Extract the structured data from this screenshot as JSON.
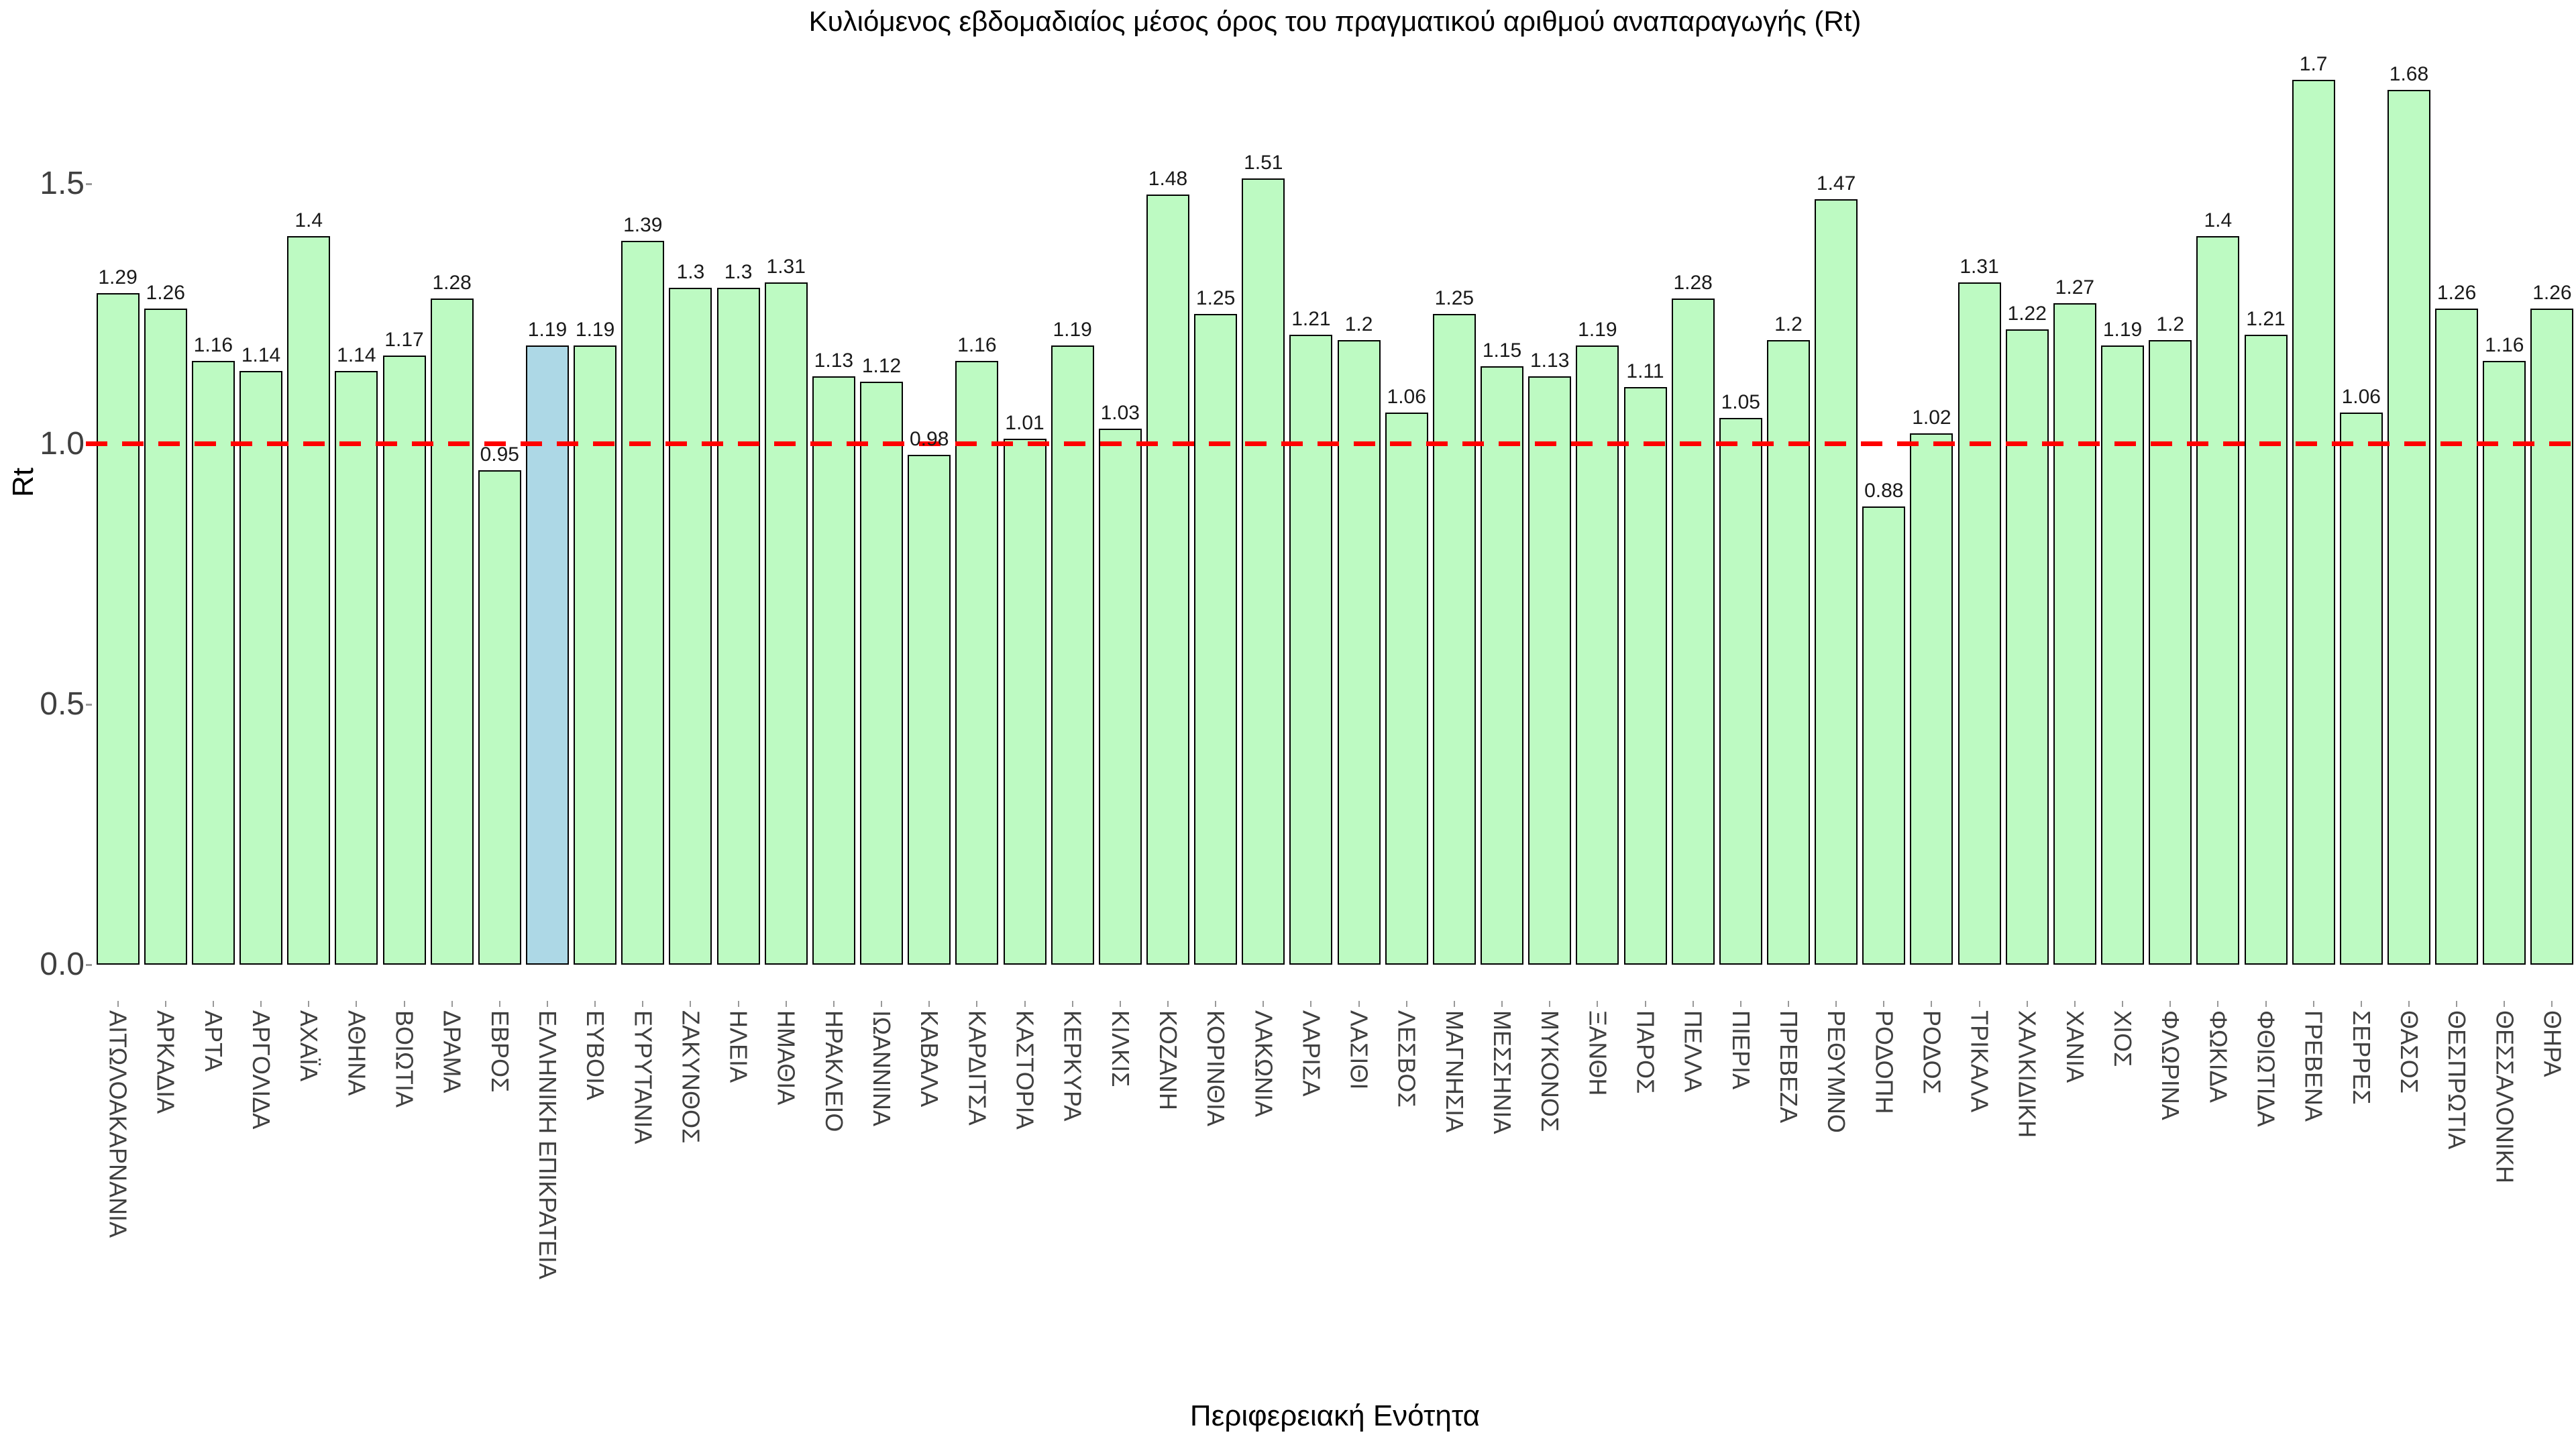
{
  "chart_data": {
    "type": "bar",
    "title": "Κυλιόμενος εβδομαδιαίος μέσος όρος του πραγματικού αριθμού αναπαραγωγής (Rt)",
    "xlabel": "Περιφερειακή Ενότητα",
    "ylabel": "Rt",
    "categories": [
      "ΑΙΤΩΛΟΑΚΑΡΝΑΝΙΑ",
      "ΑΡΚΑΔΙΑ",
      "ΑΡΤΑ",
      "ΑΡΓΟΛΙΔΑ",
      "ΑΧΑΪΑ",
      "ΑΘΗΝΑ",
      "ΒΟΙΩΤΙΑ",
      "ΔΡΑΜΑ",
      "ΕΒΡΟΣ",
      "ΕΛΛΗΝΙΚΗ ΕΠΙΚΡΑΤΕΙΑ",
      "ΕΥΒΟΙΑ",
      "ΕΥΡΥΤΑΝΙΑ",
      "ΖΑΚΥΝΘΟΣ",
      "ΗΛΕΙΑ",
      "ΗΜΑΘΙΑ",
      "ΗΡΑΚΛΕΙΟ",
      "ΙΩΑΝΝΙΝΑ",
      "ΚΑΒΑΛΑ",
      "ΚΑΡΔΙΤΣΑ",
      "ΚΑΣΤΟΡΙΑ",
      "ΚΕΡΚΥΡΑ",
      "ΚΙΛΚΙΣ",
      "ΚΟΖΑΝΗ",
      "ΚΟΡΙΝΘΙΑ",
      "ΛΑΚΩΝΙΑ",
      "ΛΑΡΙΣΑ",
      "ΛΑΣΙΘΙ",
      "ΛΕΣΒΟΣ",
      "ΜΑΓΝΗΣΙΑ",
      "ΜΕΣΣΗΝΙΑ",
      "ΜΥΚΟΝΟΣ",
      "ΞΑΝΘΗ",
      "ΠΑΡΟΣ",
      "ΠΕΛΛΑ",
      "ΠΙΕΡΙΑ",
      "ΠΡΕΒΕΖΑ",
      "ΡΕΘΥΜΝΟ",
      "ΡΟΔΟΠΗ",
      "ΡΟΔΟΣ",
      "ΤΡΙΚΑΛΑ",
      "ΧΑΛΚΙΔΙΚΗ",
      "ΧΑΝΙΑ",
      "ΧΙΟΣ",
      "ΦΛΩΡΙΝΑ",
      "ΦΩΚΙΔΑ",
      "ΦΘΙΩΤΙΔΑ",
      "ΓΡΕΒΕΝΑ",
      "ΣΕΡΡΕΣ",
      "ΘΑΣΟΣ",
      "ΘΕΣΠΡΩΤΙΑ",
      "ΘΕΣΣΑΛΟΝΙΚΗ",
      "ΘΗΡΑ"
    ],
    "values": [
      1.29,
      1.26,
      1.16,
      1.14,
      1.4,
      1.14,
      1.17,
      1.28,
      0.95,
      1.19,
      1.19,
      1.39,
      1.3,
      1.3,
      1.31,
      1.13,
      1.12,
      0.98,
      1.16,
      1.01,
      1.19,
      1.03,
      1.48,
      1.25,
      1.51,
      1.21,
      1.2,
      1.06,
      1.25,
      1.15,
      1.13,
      1.19,
      1.11,
      1.28,
      1.05,
      1.2,
      1.47,
      0.88,
      1.02,
      1.31,
      1.22,
      1.27,
      1.19,
      1.2,
      1.4,
      1.21,
      1.7,
      1.06,
      1.68,
      1.26,
      1.16,
      1.26
    ],
    "highlight_index": 9,
    "highlight_category": "ΕΛΛΗΝΙΚΗ ΕΠΙΚΡΑΤΕΙΑ",
    "yticks": [
      0,
      0.5,
      1,
      1.5
    ],
    "ytick_labels": [
      "0.0",
      "0.5",
      "1.0",
      "1.5"
    ],
    "ylim": [
      0,
      1.85
    ],
    "grid": false,
    "legend": "none",
    "reference_line": {
      "y": 1.0,
      "style": "dashed",
      "color": "#ff0000"
    },
    "colors": {
      "bar_fill": "#bdfac2",
      "highlight_fill": "#add8e6",
      "bar_border": "#000000",
      "tick_label": "#404040",
      "value_label": "#1a1a1a",
      "tick_mark": "#999999"
    }
  }
}
